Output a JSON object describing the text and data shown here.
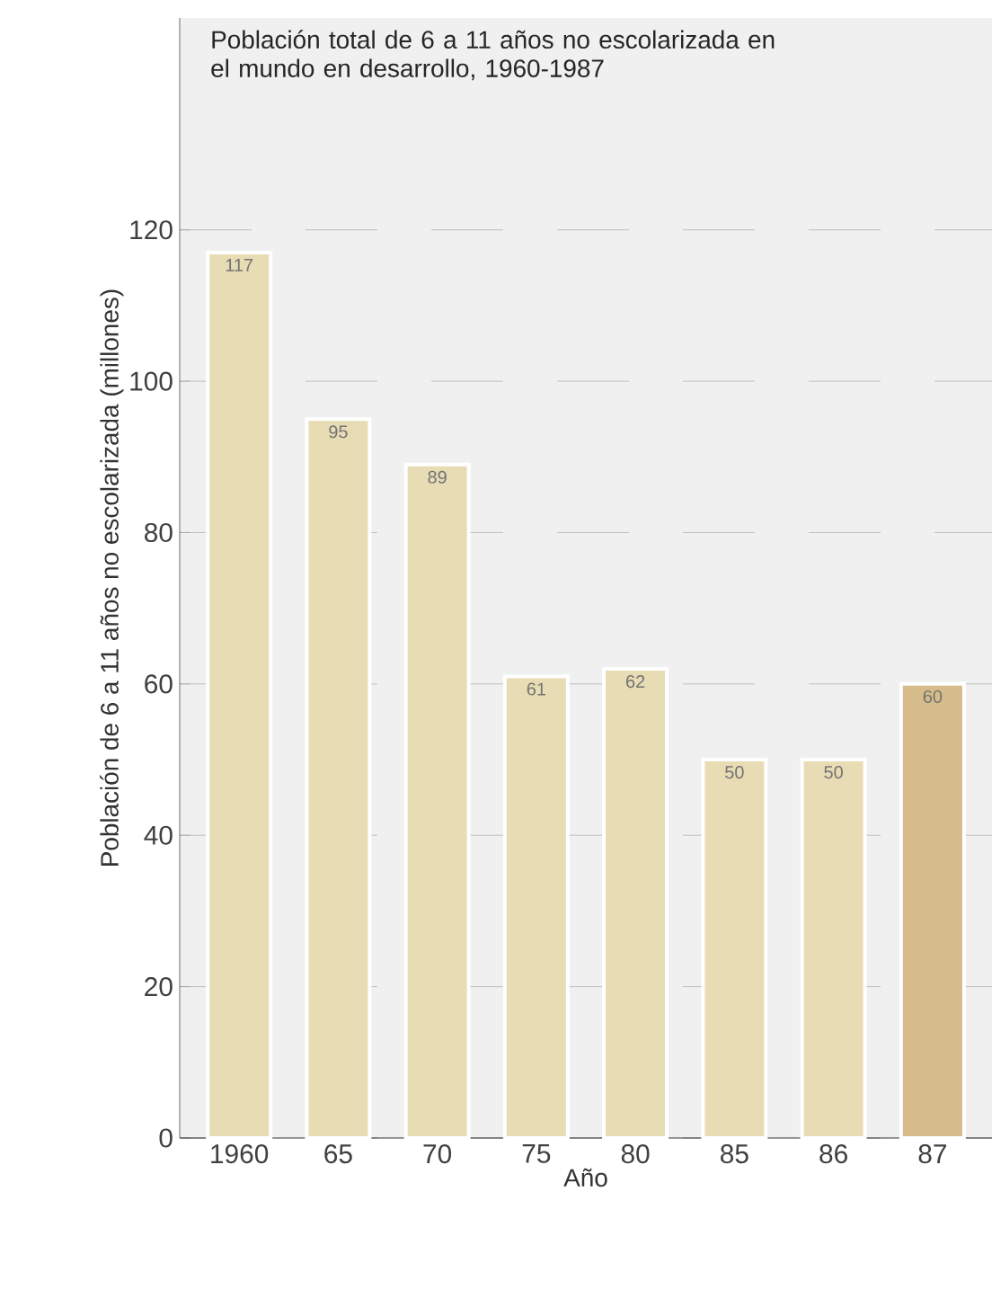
{
  "chart_data": {
    "type": "bar",
    "title": "Población total de 6 a 11 años no escolarizada en el mundo en desarrollo, 1960-1987",
    "xlabel": "Año",
    "ylabel": "Población de 6 a 11 años no escolarizada (millones)",
    "categories": [
      "1960",
      "65",
      "70",
      "75",
      "80",
      "85",
      "86",
      "87"
    ],
    "values": [
      117,
      95,
      89,
      61,
      62,
      50,
      50,
      60
    ],
    "colors": [
      "#e8dcb4",
      "#e8dcb4",
      "#e8dcb4",
      "#e8dcb4",
      "#e8dcb4",
      "#e8dcb4",
      "#e8dcb4",
      "#d6bc8a"
    ],
    "data_labels": true,
    "ylim": [
      0,
      148
    ],
    "yticks": [
      0,
      20,
      40,
      60,
      80,
      100,
      120
    ],
    "grid": "y"
  }
}
